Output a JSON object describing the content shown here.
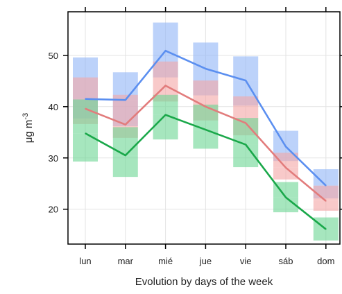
{
  "chart_data": {
    "type": "line",
    "xlabel": "Evolution by days of the week",
    "ylabel_base": "μg m",
    "ylabel_sup": "-3",
    "ylim": [
      13.2,
      58.5
    ],
    "yticks": [
      20,
      30,
      40,
      50
    ],
    "categories": [
      "lun",
      "mar",
      "mié",
      "jue",
      "vie",
      "sáb",
      "dom"
    ],
    "grid": true,
    "series": [
      {
        "color": "#5b8ff0",
        "band_color": "#93b6f7",
        "mean": [
          41.5,
          41.3,
          50.9,
          47.4,
          45.1,
          32.2,
          24.6
        ],
        "lower": [
          37.7,
          36.2,
          45.7,
          42.2,
          40.2,
          29.4,
          22.1
        ],
        "upper": [
          49.6,
          46.7,
          56.4,
          52.5,
          49.8,
          35.3,
          27.8
        ]
      },
      {
        "color": "#e27c7c",
        "band_color": "#f3a8a8",
        "mean": [
          39.6,
          36.5,
          44.1,
          40.0,
          36.8,
          28.1,
          21.6
        ],
        "lower": [
          36.6,
          33.9,
          41.0,
          37.3,
          34.4,
          25.8,
          19.7
        ],
        "upper": [
          45.7,
          42.3,
          48.8,
          45.1,
          42.0,
          31.0,
          24.6
        ]
      },
      {
        "color": "#1aa84a",
        "band_color": "#6fd796",
        "mean": [
          34.8,
          30.5,
          38.4,
          35.5,
          32.6,
          22.3,
          16.1
        ],
        "lower": [
          29.3,
          26.3,
          33.6,
          31.8,
          28.2,
          19.4,
          13.9
        ],
        "upper": [
          41.4,
          36.0,
          42.3,
          40.4,
          37.8,
          25.3,
          18.4
        ]
      }
    ]
  }
}
